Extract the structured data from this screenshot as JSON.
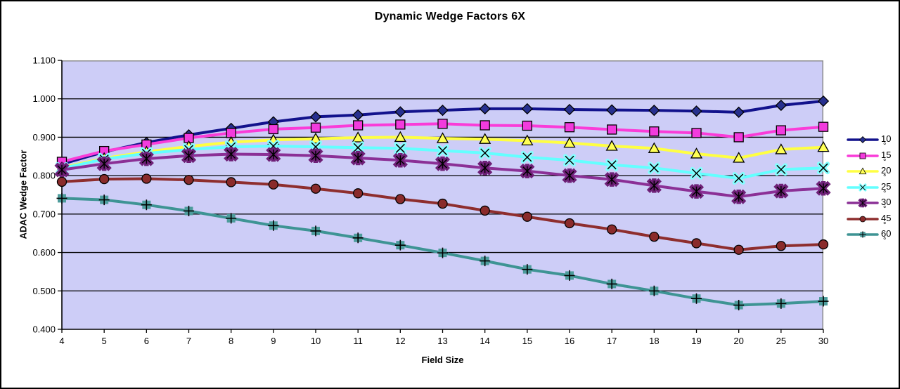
{
  "frame": {
    "background": "#FFFFFF",
    "border_color": "#000000"
  },
  "chart_data": {
    "type": "line",
    "title": "Dynamic Wedge Factors 6X",
    "xlabel": "Field Size",
    "ylabel": "ADAC Wedge Factor",
    "categories": [
      "4",
      "5",
      "6",
      "7",
      "8",
      "9",
      "10",
      "11",
      "12",
      "13",
      "14",
      "15",
      "16",
      "17",
      "18",
      "19",
      "20",
      "25",
      "30"
    ],
    "ylim": [
      0.4,
      1.1
    ],
    "y_tick_labels": [
      "1.100",
      "1.000",
      "0.900",
      "0.800",
      "0.700",
      "0.600",
      "0.500",
      "0.400"
    ],
    "grid": "horizontal",
    "legend_position": "right",
    "plot_bg_color": "#CDCDF7",
    "gridline_color": "#000000",
    "axis_color": "#000000",
    "plot_border_color": "#8C8C8C",
    "series": [
      {
        "name": "10 °",
        "label": "10",
        "degree": "°",
        "marker": "diamond",
        "line_color": "#12128C",
        "marker_color": "#27308F",
        "values": [
          0.83,
          0.862,
          0.886,
          0.906,
          0.923,
          0.94,
          0.953,
          0.958,
          0.966,
          0.97,
          0.974,
          0.974,
          0.972,
          0.971,
          0.97,
          0.968,
          0.965,
          0.983,
          0.994
        ]
      },
      {
        "name": "15 °",
        "label": "15",
        "degree": "°",
        "marker": "square",
        "line_color": "#FA3CD8",
        "marker_color": "#F23BDD",
        "values": [
          0.836,
          0.864,
          0.881,
          0.898,
          0.911,
          0.921,
          0.925,
          0.931,
          0.933,
          0.935,
          0.931,
          0.93,
          0.926,
          0.92,
          0.915,
          0.911,
          0.9,
          0.918,
          0.927
        ]
      },
      {
        "name": "20 °",
        "label": "20",
        "degree": "°",
        "marker": "triangle",
        "line_color": "#FFFF42",
        "marker_color": "#FFFF55",
        "values": [
          0.821,
          0.845,
          0.862,
          0.876,
          0.887,
          0.893,
          0.896,
          0.899,
          0.9,
          0.897,
          0.895,
          0.891,
          0.885,
          0.877,
          0.871,
          0.857,
          0.846,
          0.868,
          0.874
        ]
      },
      {
        "name": "25 °",
        "label": "25",
        "degree": "°",
        "marker": "x",
        "line_color": "#63FFFF",
        "marker_color": "#84FFFF",
        "values": [
          0.819,
          0.843,
          0.858,
          0.868,
          0.875,
          0.877,
          0.875,
          0.873,
          0.871,
          0.865,
          0.859,
          0.848,
          0.84,
          0.828,
          0.82,
          0.806,
          0.793,
          0.816,
          0.82
        ]
      },
      {
        "name": "30 °",
        "label": "30",
        "degree": "°",
        "marker": "star",
        "line_color": "#8B3096",
        "marker_color": "#6E2077",
        "values": [
          0.815,
          0.831,
          0.844,
          0.852,
          0.856,
          0.855,
          0.852,
          0.846,
          0.84,
          0.831,
          0.82,
          0.812,
          0.8,
          0.79,
          0.774,
          0.759,
          0.745,
          0.76,
          0.767
        ]
      },
      {
        "name": "45 °",
        "label": "45",
        "degree": "°",
        "marker": "circle",
        "line_color": "#8E2E2E",
        "marker_color": "#8A2B2B",
        "values": [
          0.784,
          0.791,
          0.792,
          0.789,
          0.783,
          0.777,
          0.766,
          0.754,
          0.739,
          0.727,
          0.709,
          0.693,
          0.676,
          0.66,
          0.641,
          0.624,
          0.607,
          0.617,
          0.621
        ]
      },
      {
        "name": "60 °",
        "label": "60",
        "degree": "°",
        "marker": "plus",
        "line_color": "#3E9494",
        "marker_color": "#4D9C9C",
        "values": [
          0.741,
          0.737,
          0.724,
          0.708,
          0.689,
          0.67,
          0.656,
          0.638,
          0.619,
          0.599,
          0.578,
          0.556,
          0.54,
          0.518,
          0.5,
          0.48,
          0.463,
          0.467,
          0.473
        ]
      }
    ]
  }
}
